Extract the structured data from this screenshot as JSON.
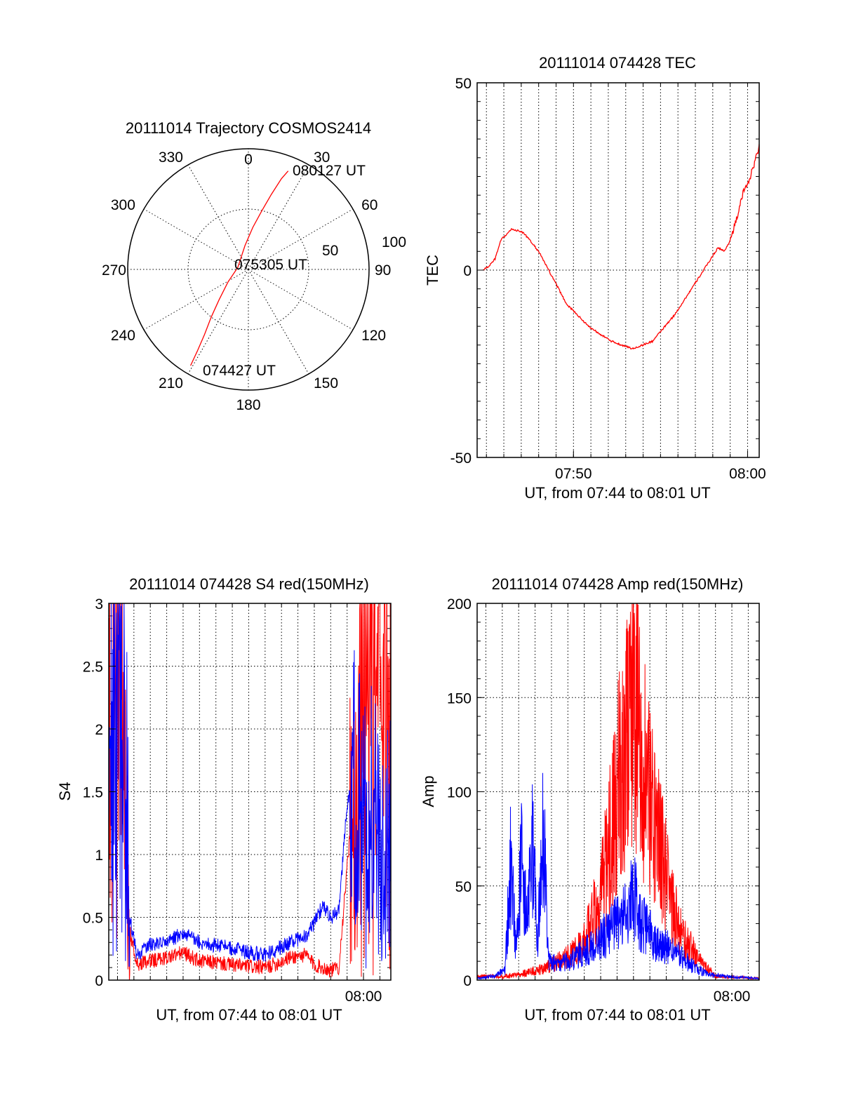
{
  "colors": {
    "red_series": "#ff0000",
    "blue_series": "#0000ff",
    "axes": "#000000",
    "grid": "#000000"
  },
  "chart_data": [
    {
      "type": "polar",
      "title": "20111014 Trajectory COSMOS2414",
      "azimuth_labels": [
        "0",
        "30",
        "60",
        "90",
        "120",
        "150",
        "180",
        "210",
        "240",
        "270",
        "300",
        "330"
      ],
      "radial_labels": [
        "50",
        "100"
      ],
      "rlim": [
        0,
        100
      ],
      "grid": true,
      "annotations": {
        "start": "074427 UT",
        "middle": "075305 UT",
        "end": "080127 UT"
      },
      "series": [
        {
          "color": "#ff0000",
          "points": [
            {
              "az": 211,
              "zen": 93
            },
            {
              "az": 212,
              "zen": 80
            },
            {
              "az": 214,
              "zen": 65
            },
            {
              "az": 218,
              "zen": 50
            },
            {
              "az": 224,
              "zen": 35
            },
            {
              "az": 238,
              "zen": 20
            },
            {
              "az": 280,
              "zen": 9
            },
            {
              "az": 352,
              "zen": 20
            },
            {
              "az": 6,
              "zen": 35
            },
            {
              "az": 13,
              "zen": 50
            },
            {
              "az": 17,
              "zen": 65
            },
            {
              "az": 20,
              "zen": 80
            },
            {
              "az": 22,
              "zen": 88
            }
          ]
        }
      ]
    },
    {
      "type": "line",
      "title": "20111014 074428 TEC",
      "xlabel": "UT, from 07:44 to 08:01 UT",
      "ylabel": "TEC",
      "xlim": [
        "07:44:28",
        "08:00:40"
      ],
      "ylim": [
        -50,
        50
      ],
      "xticks": [
        "07:50",
        "08:00"
      ],
      "yticks": [
        "-50",
        "0",
        "50"
      ],
      "grid": true,
      "series": [
        {
          "color": "#ff0000",
          "x": [
            "07:44:48",
            "07:45:08",
            "07:45:30",
            "07:45:50",
            "07:46:28",
            "07:47:08",
            "07:48:00",
            "07:48:48",
            "07:49:36",
            "07:50:52",
            "07:52:10",
            "07:53:24",
            "07:54:32",
            "07:55:48",
            "07:57:12",
            "07:58:18",
            "07:58:40",
            "07:59:00",
            "07:59:20",
            "07:59:46",
            "08:00:10",
            "08:00:40"
          ],
          "values": [
            0,
            1,
            3,
            8,
            11,
            10,
            5,
            -2,
            -9,
            -15,
            -19,
            -21,
            -19,
            -12,
            -2,
            6,
            5,
            8,
            13,
            21,
            25,
            33
          ]
        }
      ]
    },
    {
      "type": "line",
      "title": "20111014 074428 S4 red(150MHz)",
      "xlabel": "UT, from 07:44 to 08:01 UT",
      "ylabel": "S4",
      "xlim": [
        "07:44:28",
        "08:01:40"
      ],
      "ylim": [
        0,
        3
      ],
      "xticks": [
        "08:00"
      ],
      "yticks": [
        "0",
        "0.5",
        "1",
        "1.5",
        "2",
        "2.5",
        "3"
      ],
      "grid": true,
      "series": [
        {
          "color": "#ff0000",
          "x": [
            "07:44:28",
            "07:44:50",
            "07:45:10",
            "07:45:30",
            "07:45:45",
            "07:46:10",
            "07:47:00",
            "07:48:00",
            "07:49:00",
            "07:50:00",
            "07:51:00",
            "07:52:00",
            "07:53:00",
            "07:54:00",
            "07:54:40",
            "07:55:30",
            "07:56:30",
            "07:57:00",
            "07:57:30",
            "07:58:00",
            "07:58:30",
            "07:59:00",
            "07:59:30",
            "08:00:00",
            "08:00:30",
            "08:01:00",
            "08:01:40"
          ],
          "values": [
            2.5,
            3,
            2.8,
            1.8,
            0.4,
            0.12,
            0.15,
            0.18,
            0.22,
            0.15,
            0.14,
            0.12,
            0.11,
            0.1,
            0.13,
            0.18,
            0.2,
            0.12,
            0.1,
            0.08,
            0.1,
            0.9,
            1.6,
            2.5,
            3,
            3,
            2.8
          ]
        },
        {
          "color": "#0000ff",
          "x": [
            "07:44:28",
            "07:44:50",
            "07:45:10",
            "07:45:30",
            "07:45:45",
            "07:46:10",
            "07:47:00",
            "07:48:00",
            "07:49:00",
            "07:50:00",
            "07:51:00",
            "07:52:00",
            "07:53:00",
            "07:54:00",
            "07:54:40",
            "07:55:30",
            "07:56:30",
            "07:57:00",
            "07:57:30",
            "07:58:00",
            "07:58:30",
            "07:59:00",
            "07:59:30",
            "08:00:00",
            "08:00:30",
            "08:01:00",
            "08:01:40"
          ],
          "values": [
            2.2,
            3,
            2.9,
            2.0,
            0.5,
            0.2,
            0.28,
            0.3,
            0.38,
            0.3,
            0.28,
            0.25,
            0.22,
            0.2,
            0.24,
            0.3,
            0.35,
            0.45,
            0.6,
            0.5,
            0.55,
            1.4,
            1.6,
            1.3,
            1.4,
            1.2,
            1.3
          ]
        }
      ]
    },
    {
      "type": "line",
      "title": "20111014 074428 Amp red(150MHz)",
      "xlabel": "UT, from 07:44 to 08:01 UT",
      "ylabel": "Amp",
      "xlim": [
        "07:44:28",
        "08:01:40"
      ],
      "ylim": [
        0,
        200
      ],
      "xticks": [
        "08:00"
      ],
      "yticks": [
        "0",
        "50",
        "100",
        "150",
        "200"
      ],
      "grid": true,
      "series": [
        {
          "color": "#ff0000",
          "x": [
            "07:44:28",
            "07:46:00",
            "07:47:00",
            "07:48:00",
            "07:49:00",
            "07:50:00",
            "07:51:00",
            "07:52:00",
            "07:52:30",
            "07:53:00",
            "07:53:30",
            "07:54:00",
            "07:54:30",
            "07:55:00",
            "07:55:30",
            "07:56:00",
            "07:56:30",
            "07:57:00",
            "07:58:00",
            "07:58:30",
            "07:59:00",
            "08:01:40"
          ],
          "values": [
            2,
            2,
            3,
            5,
            8,
            12,
            20,
            45,
            70,
            100,
            130,
            145,
            120,
            95,
            75,
            55,
            35,
            22,
            12,
            6,
            2,
            1
          ]
        },
        {
          "color": "#0000ff",
          "x": [
            "07:44:28",
            "07:45:30",
            "07:46:10",
            "07:46:30",
            "07:46:50",
            "07:47:10",
            "07:47:30",
            "07:47:50",
            "07:48:10",
            "07:48:30",
            "07:48:50",
            "07:49:30",
            "07:50:30",
            "07:51:30",
            "07:52:30",
            "07:53:30",
            "07:54:00",
            "07:54:30",
            "07:55:30",
            "07:56:30",
            "07:57:30",
            "07:58:30",
            "07:59:30",
            "08:01:40"
          ],
          "values": [
            1,
            2,
            5,
            60,
            20,
            65,
            30,
            70,
            25,
            80,
            10,
            8,
            12,
            18,
            25,
            35,
            45,
            30,
            20,
            15,
            8,
            3,
            2,
            1
          ]
        }
      ]
    }
  ]
}
